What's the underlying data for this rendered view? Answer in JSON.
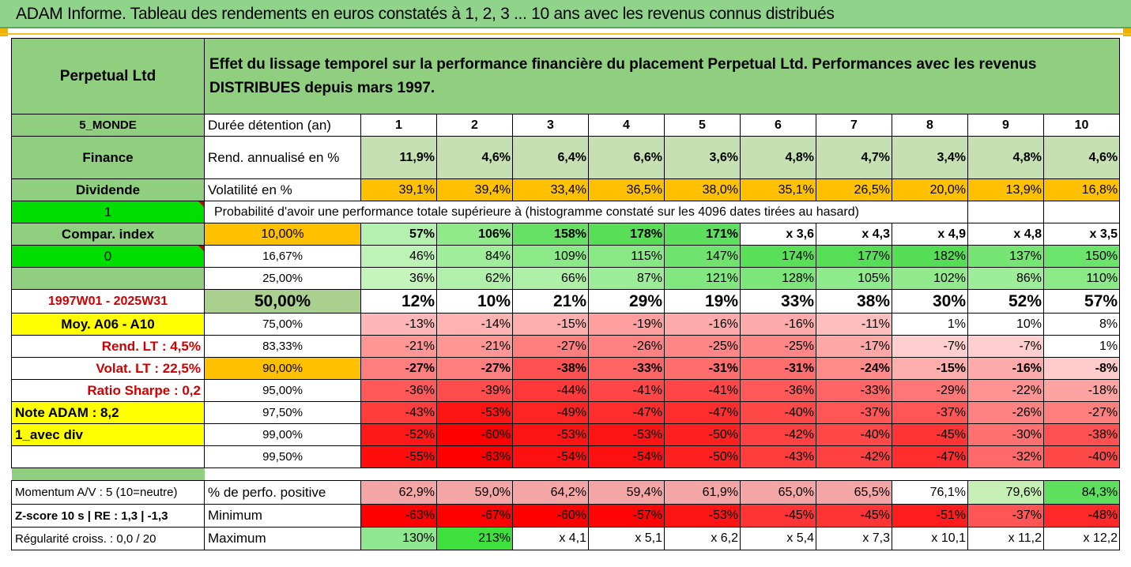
{
  "title": "ADAM Informe. Tableau des rendements en euros constatés à 1, 2, 3 ... 10 ans avec les revenus connus distribués",
  "header": {
    "fund": "Perpetual Ltd",
    "description": "Effet du lissage temporel sur la performance financière du placement Perpetual Ltd. Performances avec les revenus DISTRIBUES depuis mars 1997."
  },
  "rows": {
    "duree": {
      "left": "5_MONDE",
      "label": "Durée détention (an)",
      "values": [
        "1",
        "2",
        "3",
        "4",
        "5",
        "6",
        "7",
        "8",
        "9",
        "10"
      ]
    },
    "rend": {
      "left": "Finance",
      "label": "Rend. annualisé en %",
      "values": [
        "11,9%",
        "4,6%",
        "6,4%",
        "6,6%",
        "3,6%",
        "4,8%",
        "4,7%",
        "3,4%",
        "4,8%",
        "4,6%"
      ]
    },
    "vol": {
      "left": "Dividende",
      "label": "Volatilité en %",
      "values": [
        "39,1%",
        "39,4%",
        "33,4%",
        "36,5%",
        "38,0%",
        "35,1%",
        "26,5%",
        "20,0%",
        "13,9%",
        "16,8%"
      ]
    },
    "proba": {
      "left": "1",
      "label": "Probabilité d'avoir une performance totale supérieure à (histogramme constaté sur les 4096 dates tirées au hasard)"
    },
    "p10": {
      "left": "Compar. index",
      "label": "10,00%",
      "values": [
        "57%",
        "106%",
        "158%",
        "178%",
        "171%",
        "x 3,6",
        "x 4,3",
        "x 4,9",
        "x 4,8",
        "x 3,5"
      ]
    },
    "p16": {
      "left": "0",
      "label": "16,67%",
      "values": [
        "46%",
        "84%",
        "109%",
        "115%",
        "147%",
        "174%",
        "177%",
        "182%",
        "137%",
        "150%"
      ]
    },
    "p25": {
      "left": "",
      "label": "25,00%",
      "values": [
        "36%",
        "62%",
        "66%",
        "87%",
        "121%",
        "128%",
        "105%",
        "102%",
        "86%",
        "110%"
      ]
    },
    "p50": {
      "left": "1997W01 - 2025W31",
      "label": "50,00%",
      "values": [
        "12%",
        "10%",
        "21%",
        "29%",
        "19%",
        "33%",
        "38%",
        "30%",
        "52%",
        "57%"
      ]
    },
    "p75": {
      "left": "Moy. A06 - A10",
      "label": "75,00%",
      "values": [
        "-13%",
        "-14%",
        "-15%",
        "-19%",
        "-16%",
        "-16%",
        "-11%",
        "1%",
        "10%",
        "8%"
      ]
    },
    "p83": {
      "left": "Rend. LT :   4,5%",
      "label": "83,33%",
      "values": [
        "-21%",
        "-21%",
        "-27%",
        "-26%",
        "-25%",
        "-25%",
        "-17%",
        "-7%",
        "-7%",
        "1%"
      ]
    },
    "p90": {
      "left": "Volat. LT :   22,5%",
      "label": "90,00%",
      "values": [
        "-27%",
        "-27%",
        "-38%",
        "-33%",
        "-31%",
        "-31%",
        "-24%",
        "-15%",
        "-16%",
        "-8%"
      ]
    },
    "p95": {
      "left": "Ratio Sharpe :   0,2",
      "label": "95,00%",
      "values": [
        "-36%",
        "-39%",
        "-44%",
        "-41%",
        "-41%",
        "-36%",
        "-33%",
        "-29%",
        "-22%",
        "-18%"
      ]
    },
    "p975": {
      "left": "Note ADAM : 8,2",
      "label": "97,50%",
      "values": [
        "-43%",
        "-53%",
        "-49%",
        "-47%",
        "-47%",
        "-40%",
        "-37%",
        "-37%",
        "-26%",
        "-27%"
      ]
    },
    "p99": {
      "left": "1_avec div",
      "label": "99,00%",
      "values": [
        "-52%",
        "-60%",
        "-53%",
        "-53%",
        "-50%",
        "-42%",
        "-40%",
        "-45%",
        "-30%",
        "-38%"
      ]
    },
    "p995": {
      "left": "",
      "label": "99,50%",
      "values": [
        "-55%",
        "-63%",
        "-54%",
        "-54%",
        "-50%",
        "-43%",
        "-42%",
        "-47%",
        "-32%",
        "-40%"
      ]
    },
    "pos": {
      "left": "Momentum A/V : 5 (10=neutre)",
      "label": "% de perfo. positive",
      "values": [
        "62,9%",
        "59,0%",
        "64,2%",
        "59,4%",
        "61,9%",
        "65,0%",
        "65,5%",
        "76,1%",
        "79,6%",
        "84,3%"
      ]
    },
    "min": {
      "left": "Z-score 10 s  |  RE : 1,3  |  -1,3",
      "label": "Minimum",
      "values": [
        "-63%",
        "-67%",
        "-60%",
        "-57%",
        "-53%",
        "-45%",
        "-45%",
        "-51%",
        "-37%",
        "-48%"
      ]
    },
    "max": {
      "left": "Régularité croiss. : 0,0 / 20",
      "label": "Maximum",
      "values": [
        "130%",
        "213%",
        "x 4,1",
        "x 5,1",
        "x 6,2",
        "x 5,4",
        "x 7,3",
        "x 10,1",
        "x 11,2",
        "x 12,2"
      ]
    }
  },
  "colors": {
    "header_green": "#8fcf7f",
    "positive_strong": "#5ee05e",
    "negative_strong": "#ff0000",
    "neutral": "#ffffff"
  }
}
